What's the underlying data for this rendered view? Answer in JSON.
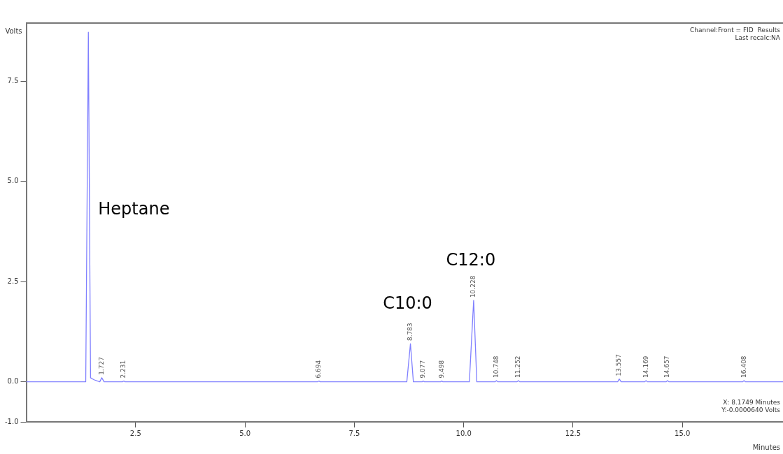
{
  "chart_data": {
    "type": "line",
    "xlabel": "Minutes",
    "ylabel": "Volts",
    "x": [
      0.0,
      1.36,
      1.42,
      1.47,
      1.55,
      1.68,
      1.727,
      1.78,
      2.2,
      2.231,
      2.26,
      6.66,
      6.694,
      6.72,
      8.7,
      8.783,
      8.85,
      9.05,
      9.077,
      9.1,
      9.47,
      9.498,
      9.52,
      10.13,
      10.228,
      10.3,
      10.72,
      10.748,
      10.78,
      11.22,
      11.252,
      11.28,
      13.52,
      13.557,
      13.6,
      14.14,
      14.169,
      14.2,
      14.63,
      14.657,
      14.69,
      16.38,
      16.408,
      16.44,
      17.3
    ],
    "series": [
      {
        "color": "#8080ff",
        "values": [
          0,
          0,
          8.72,
          0.1,
          0.05,
          0,
          0.1,
          0,
          0,
          0.02,
          0,
          0,
          0.02,
          0,
          0,
          0.95,
          0,
          0,
          0.02,
          0,
          0,
          0.02,
          0,
          0,
          2.03,
          0,
          0,
          0.03,
          0,
          0,
          0.03,
          0,
          0,
          0.07,
          0,
          0,
          0.03,
          0,
          0,
          0.03,
          0,
          0,
          0.03,
          0,
          0
        ]
      }
    ],
    "xlim": [
      0,
      17.3
    ],
    "ylim": [
      -1.0,
      8.95
    ],
    "xticks": [
      2.5,
      {
        "value": 5.0,
        "label": "5.0"
      },
      7.5,
      {
        "value": 10.0,
        "label": "10.0"
      },
      12.5,
      {
        "value": 15.0,
        "label": "15.0"
      }
    ],
    "yticks": [
      {
        "value": -1.0,
        "label": "-1.0"
      },
      {
        "value": 0.0,
        "label": "0.0"
      },
      2.5,
      {
        "value": 5.0,
        "label": "5.0"
      },
      7.5
    ],
    "grid": false,
    "legend": false,
    "marker": "none",
    "line_style": "solid",
    "annotations": [
      {
        "text": "Heptane",
        "x": 1.42,
        "y": 4.28
      },
      {
        "text": "C10:0",
        "x": 8.783,
        "y": 0.95
      },
      {
        "text": "C12:0",
        "x": 10.228,
        "y": 2.03
      },
      {
        "text": "1.727",
        "x": 1.727,
        "y": 0.1
      },
      {
        "text": "2.231",
        "x": 2.231,
        "y": 0.02
      },
      {
        "text": "6.694",
        "x": 6.694,
        "y": 0.02
      },
      {
        "text": "8.783",
        "x": 8.783,
        "y": 0.95
      },
      {
        "text": "9.077",
        "x": 9.077,
        "y": 0.02
      },
      {
        "text": "9.498",
        "x": 9.498,
        "y": 0.02
      },
      {
        "text": "10.228",
        "x": 10.228,
        "y": 2.03
      },
      {
        "text": "10.748",
        "x": 10.748,
        "y": 0.03
      },
      {
        "text": "11.252",
        "x": 11.252,
        "y": 0.03
      },
      {
        "text": "13.557",
        "x": 13.557,
        "y": 0.07
      },
      {
        "text": "14.169",
        "x": 14.169,
        "y": 0.03
      },
      {
        "text": "14.657",
        "x": 14.657,
        "y": 0.03
      },
      {
        "text": "16.408",
        "x": 16.408,
        "y": 0.03
      },
      "Channel:Front = FID  Results",
      "Last recalc:NA",
      "X: 8.1749 Minutes",
      "Y:-0.0000640 Volts"
    ]
  }
}
